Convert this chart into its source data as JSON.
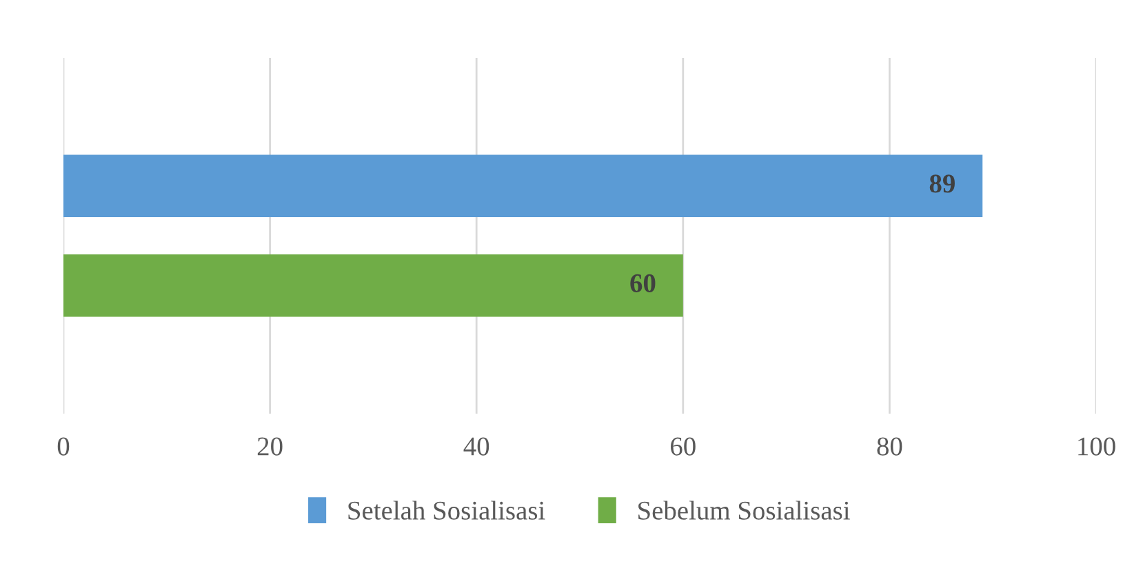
{
  "chart_data": {
    "type": "bar",
    "orientation": "horizontal",
    "categories": [
      null
    ],
    "series": [
      {
        "name": "Setelah Sosialisasi",
        "color": "#5b9bd5",
        "values": [
          89
        ]
      },
      {
        "name": "Sebelum Sosialisasi",
        "color": "#70ad47",
        "values": [
          60
        ]
      }
    ],
    "xlim": [
      0,
      100
    ],
    "xticks": [
      0,
      20,
      40,
      60,
      80,
      100
    ],
    "grid": "x",
    "legend": "bottom",
    "data_labels": true
  }
}
